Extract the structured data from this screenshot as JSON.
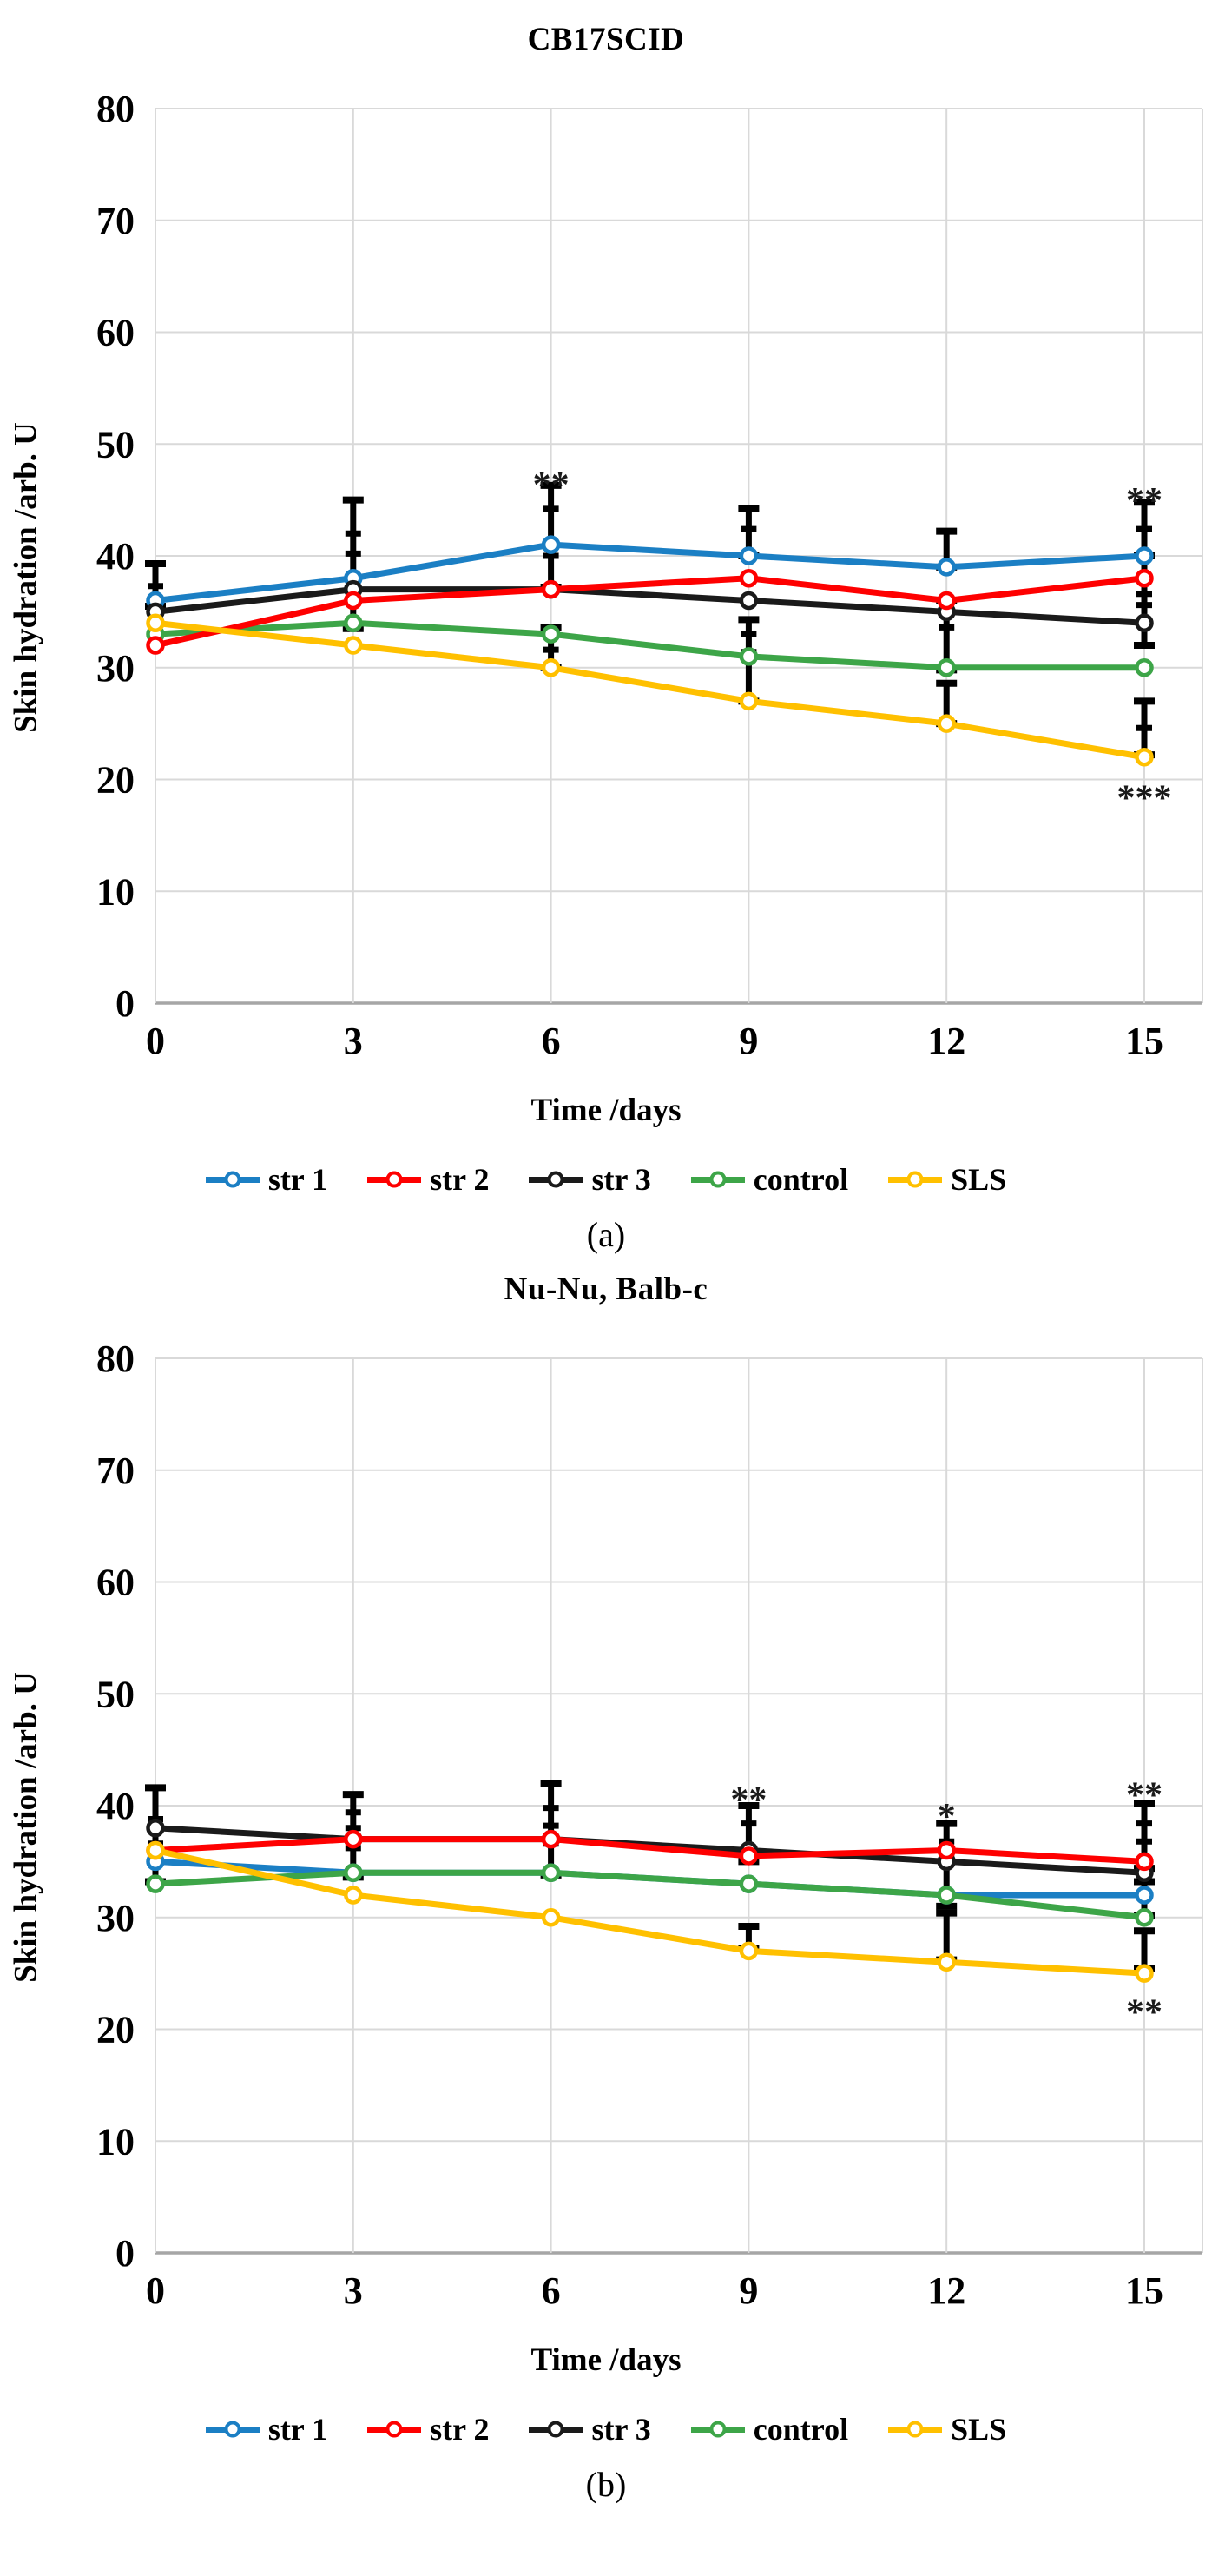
{
  "figure": {
    "background": "#ffffff",
    "grid_color": "#d9d9d9",
    "zero_axis_color": "#a6a6a6",
    "error_bar_color": "#000000",
    "panels": [
      {
        "caption": "(a)"
      },
      {
        "caption": "(b)"
      }
    ]
  },
  "chart_data": [
    {
      "type": "line",
      "title": "CB17SCID",
      "xlabel": "Time /days",
      "ylabel": "Skin hydration /arb. U",
      "x": [
        0,
        3,
        6,
        9,
        12,
        15
      ],
      "xlim": [
        0,
        16.5
      ],
      "ylim": [
        0,
        80
      ],
      "ytick_step": 10,
      "grid": true,
      "legend_position": "bottom",
      "marker": "open-circle",
      "series": [
        {
          "name": "str 1",
          "color": "#1b7fc4",
          "values": [
            36,
            38,
            41,
            40,
            39,
            40
          ]
        },
        {
          "name": "str 2",
          "color": "#fe0000",
          "values": [
            32,
            36,
            37,
            38,
            36,
            38
          ]
        },
        {
          "name": "str 3",
          "color": "#1a1a1a",
          "values": [
            35,
            37,
            37,
            36,
            35,
            34
          ]
        },
        {
          "name": "control",
          "color": "#3da548",
          "values": [
            33,
            34,
            33,
            31,
            30,
            30
          ]
        },
        {
          "name": "SLS",
          "color": "#ffc000",
          "values": [
            34,
            32,
            30,
            27,
            25,
            22
          ]
        }
      ],
      "error_bars": [
        {
          "x": 0,
          "lo": 35.5,
          "hi": 39.3,
          "caps": [
            37.3
          ]
        },
        {
          "x": 3,
          "lo": 33.5,
          "hi": 45.0,
          "caps": [
            40.2,
            42.0
          ]
        },
        {
          "x": 6,
          "lo": 37.2,
          "hi": 46.3,
          "caps": [
            40.0,
            44.2
          ]
        },
        {
          "x": 6,
          "lo": 30.0,
          "hi": 33.6,
          "caps": [
            31.6
          ]
        },
        {
          "x": 9,
          "lo": 40.0,
          "hi": 44.2,
          "caps": [
            42.4
          ]
        },
        {
          "x": 9,
          "lo": 27.0,
          "hi": 34.3,
          "caps": [
            31.4,
            33.0
          ]
        },
        {
          "x": 12,
          "lo": 39.0,
          "hi": 42.2,
          "caps": []
        },
        {
          "x": 12,
          "lo": 29.8,
          "hi": 36.0,
          "caps": [
            33.6
          ]
        },
        {
          "x": 12,
          "lo": 25.0,
          "hi": 28.6,
          "caps": []
        },
        {
          "x": 15,
          "lo": 40.0,
          "hi": 44.8,
          "caps": [
            42.4
          ]
        },
        {
          "x": 15,
          "lo": 32.0,
          "hi": 40.0,
          "caps": [
            35.6,
            36.6
          ]
        },
        {
          "x": 15,
          "lo": 22.2,
          "hi": 27.0,
          "caps": [
            24.6
          ]
        }
      ],
      "annotations": [
        {
          "x": 6,
          "y": 47.6,
          "text": "**"
        },
        {
          "x": 15,
          "y": 46.2,
          "text": "**"
        },
        {
          "x": 15,
          "y": 19.6,
          "text": "***"
        }
      ]
    },
    {
      "type": "line",
      "title": "Nu-Nu, Balb-c",
      "xlabel": "Time /days",
      "ylabel": "Skin hydration /arb. U",
      "x": [
        0,
        3,
        6,
        9,
        12,
        15
      ],
      "xlim": [
        0,
        16.5
      ],
      "ylim": [
        0,
        80
      ],
      "ytick_step": 10,
      "grid": true,
      "legend_position": "bottom",
      "marker": "open-circle",
      "series": [
        {
          "name": "str 1",
          "color": "#1b7fc4",
          "values": [
            35,
            34,
            34,
            33,
            32,
            32
          ]
        },
        {
          "name": "str 2",
          "color": "#fe0000",
          "values": [
            36,
            37,
            37,
            35.5,
            36,
            35
          ]
        },
        {
          "name": "str 3",
          "color": "#1a1a1a",
          "values": [
            38,
            37,
            37,
            36,
            35,
            34
          ]
        },
        {
          "name": "control",
          "color": "#3da548",
          "values": [
            33,
            34,
            34,
            33,
            32,
            30
          ]
        },
        {
          "name": "SLS",
          "color": "#ffc000",
          "values": [
            36,
            32,
            30,
            27,
            26,
            25
          ]
        }
      ],
      "error_bars": [
        {
          "x": 0,
          "lo": 33.2,
          "hi": 41.6,
          "caps": [
            38.8,
            36.6
          ]
        },
        {
          "x": 3,
          "lo": 33.6,
          "hi": 41.0,
          "caps": [
            39.4,
            38.0,
            36.2
          ]
        },
        {
          "x": 6,
          "lo": 33.8,
          "hi": 42.0,
          "caps": [
            39.8,
            38.2,
            36.6
          ]
        },
        {
          "x": 9,
          "lo": 35.0,
          "hi": 40.0,
          "caps": [
            38.4
          ]
        },
        {
          "x": 9,
          "lo": 27.2,
          "hi": 29.2,
          "caps": []
        },
        {
          "x": 12,
          "lo": 31.0,
          "hi": 38.4,
          "caps": [
            36.8,
            35.4
          ]
        },
        {
          "x": 12,
          "lo": 26.2,
          "hi": 30.4,
          "caps": []
        },
        {
          "x": 15,
          "lo": 34.4,
          "hi": 40.2,
          "caps": [
            38.4,
            36.8
          ]
        },
        {
          "x": 15,
          "lo": 30.2,
          "hi": 33.2,
          "caps": [
            31.8
          ]
        },
        {
          "x": 15,
          "lo": 25.4,
          "hi": 28.8,
          "caps": []
        }
      ],
      "annotations": [
        {
          "x": 9,
          "y": 41.8,
          "text": "**"
        },
        {
          "x": 12,
          "y": 40.3,
          "text": "*"
        },
        {
          "x": 15,
          "y": 42.2,
          "text": "**"
        },
        {
          "x": 15,
          "y": 22.8,
          "text": "**"
        }
      ]
    }
  ]
}
